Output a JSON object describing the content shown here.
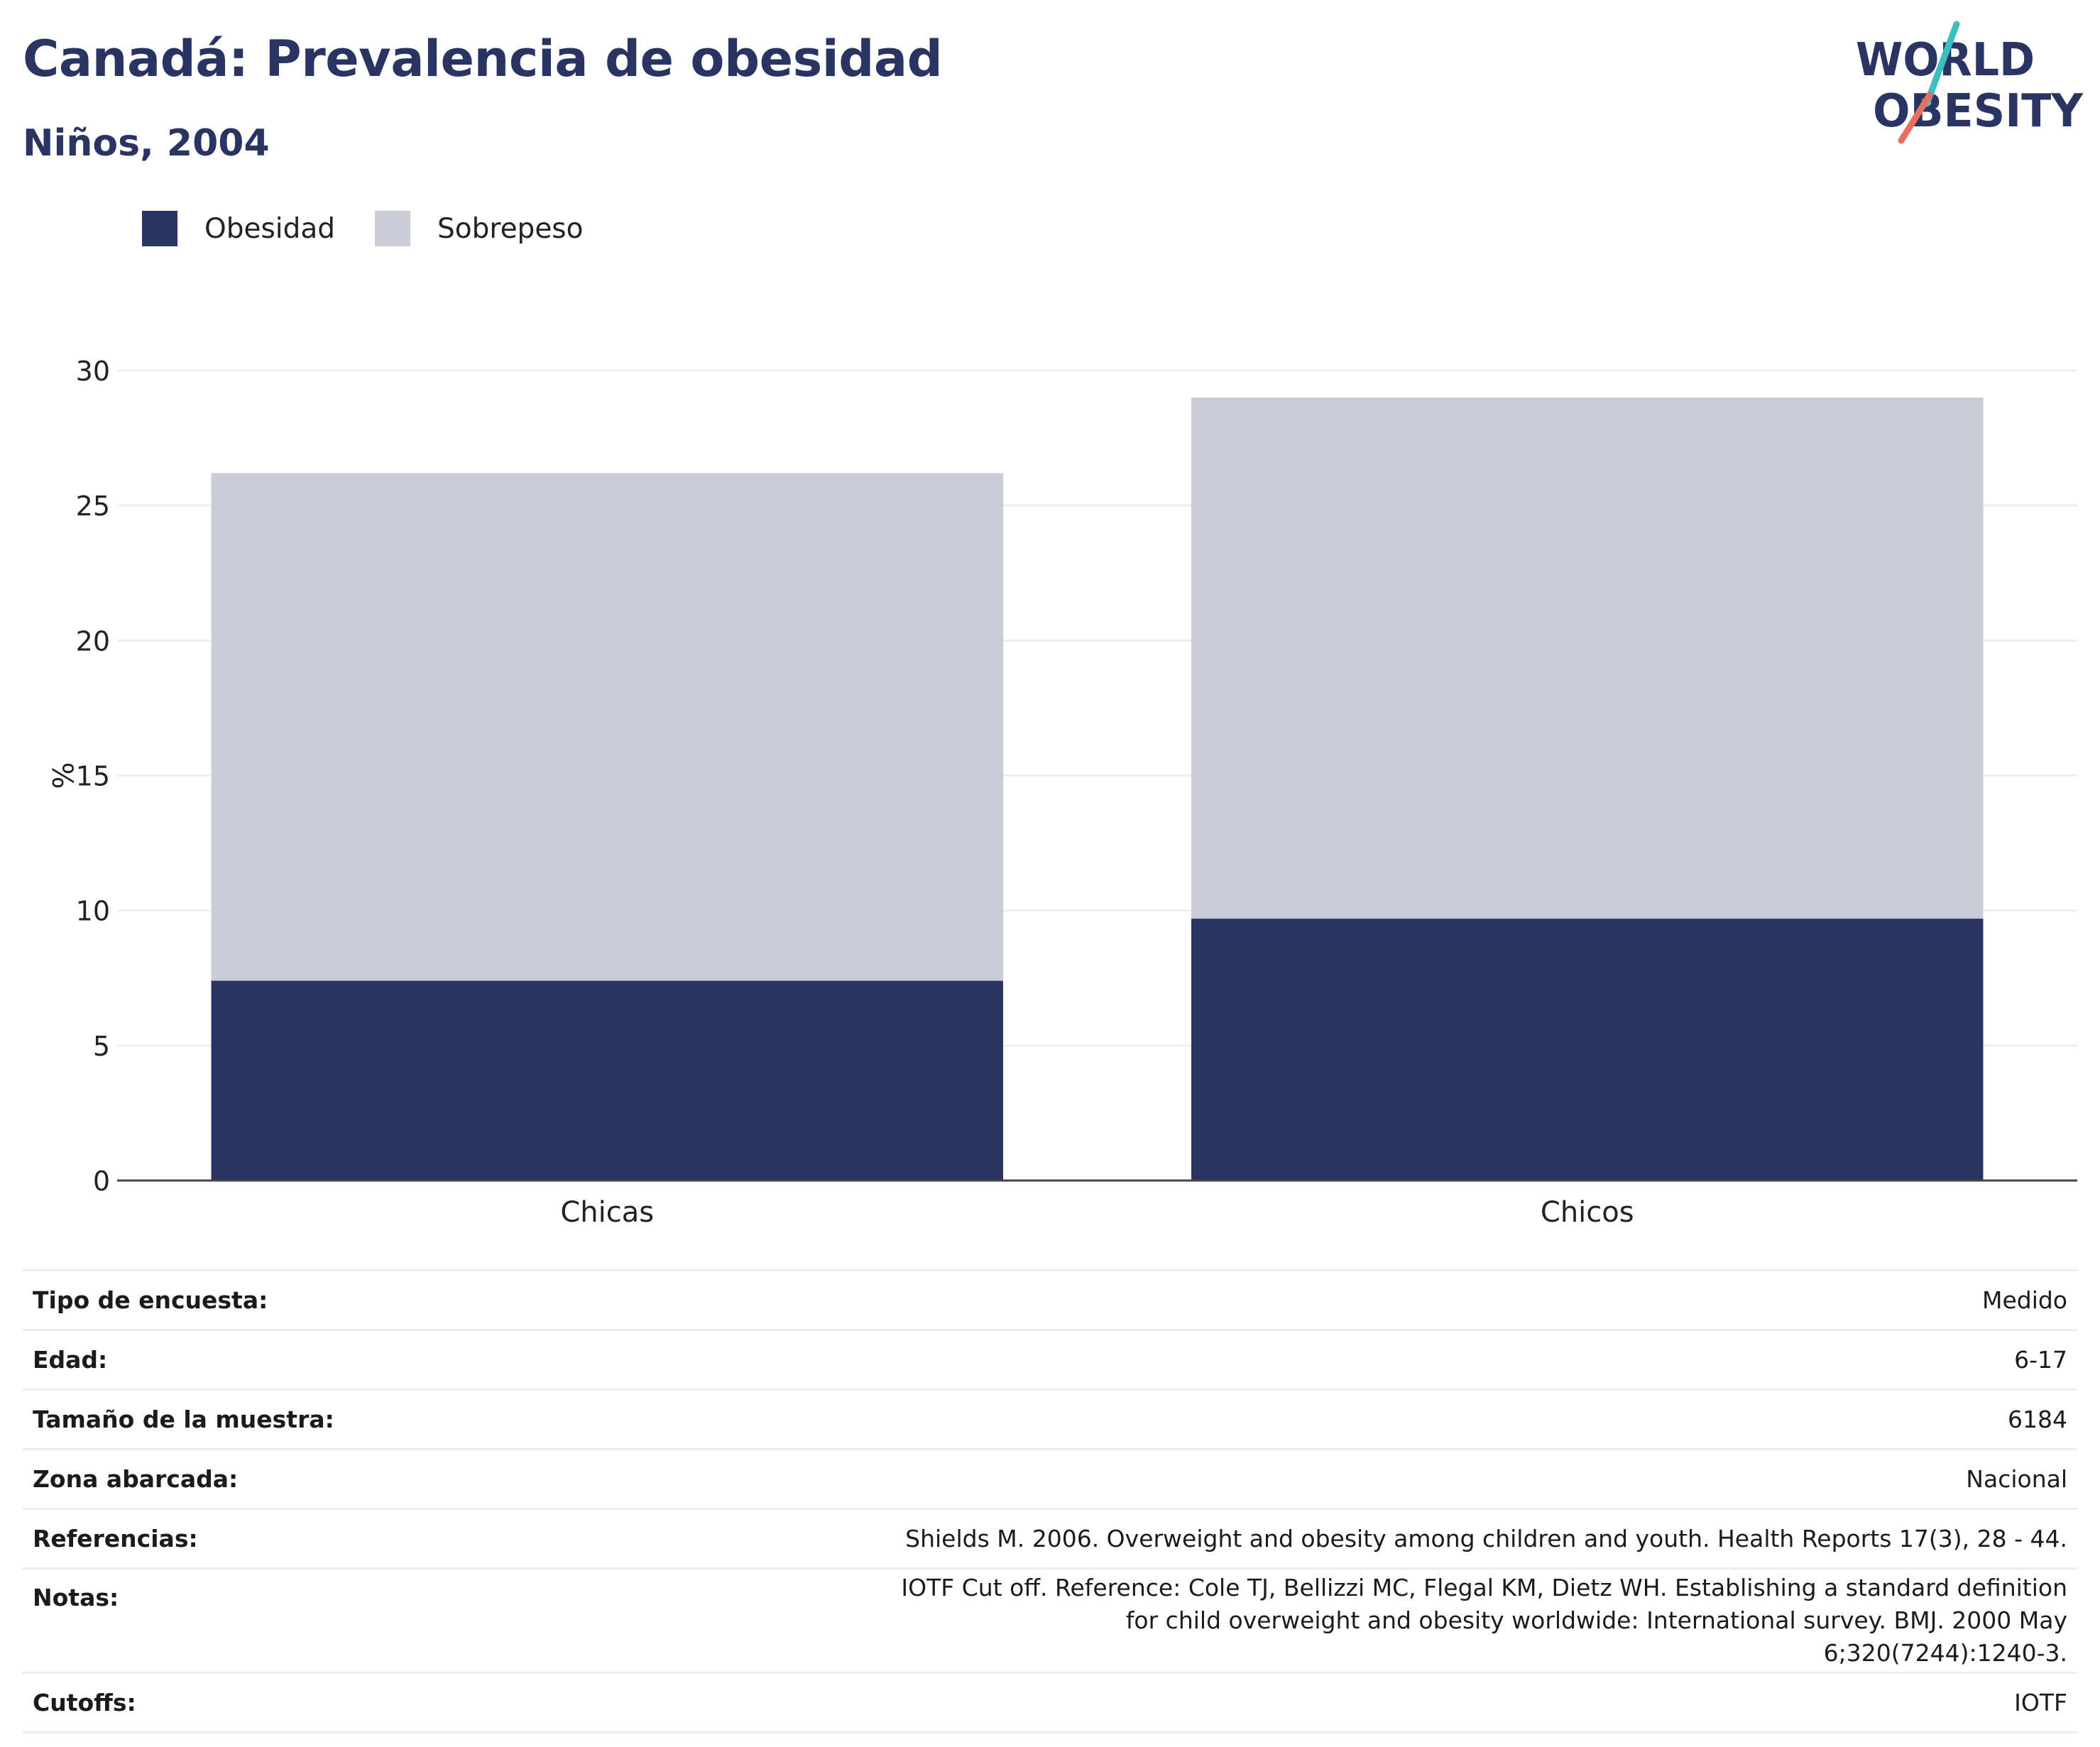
{
  "title": "Canadá: Prevalencia de obesidad",
  "subtitle": "Niños, 2004",
  "logo": {
    "line1": "WORLD",
    "line2": "OBESITY"
  },
  "colors": {
    "obesity": "#293462",
    "overweight": "#caccd8",
    "logo_teal": "#3bbfc2",
    "logo_coral": "#e86f5e",
    "text": "#293462"
  },
  "legend": [
    {
      "label": "Obesidad",
      "color": "#293462"
    },
    {
      "label": "Sobrepeso",
      "color": "#caccd8"
    }
  ],
  "chart_data": {
    "type": "bar",
    "stacked": true,
    "categories": [
      "Chicas",
      "Chicos"
    ],
    "series": [
      {
        "name": "Obesidad",
        "values": [
          7.4,
          9.7
        ]
      },
      {
        "name": "Sobrepeso",
        "values": [
          18.8,
          19.3
        ]
      }
    ],
    "ylabel": "%",
    "ylim": [
      0,
      30
    ],
    "yticks": [
      0,
      5,
      10,
      15,
      20,
      25,
      30
    ],
    "grid": true,
    "legend_position": "top-left"
  },
  "info": [
    {
      "label": "Tipo de encuesta:",
      "value": "Medido"
    },
    {
      "label": "Edad:",
      "value": "6-17"
    },
    {
      "label": "Tamaño de la muestra:",
      "value": "6184"
    },
    {
      "label": "Zona abarcada:",
      "value": "Nacional"
    },
    {
      "label": "Referencias:",
      "value": "Shields M. 2006. Overweight and obesity among children and youth. Health Reports 17(3), 28 - 44."
    },
    {
      "label": "Notas:",
      "value": "IOTF Cut off. Reference: Cole TJ, Bellizzi MC, Flegal KM, Dietz WH. Establishing a standard definition for child overweight and obesity worldwide: International survey. BMJ. 2000 May 6;320(7244):1240-3."
    },
    {
      "label": "Cutoffs:",
      "value": "IOTF"
    }
  ]
}
